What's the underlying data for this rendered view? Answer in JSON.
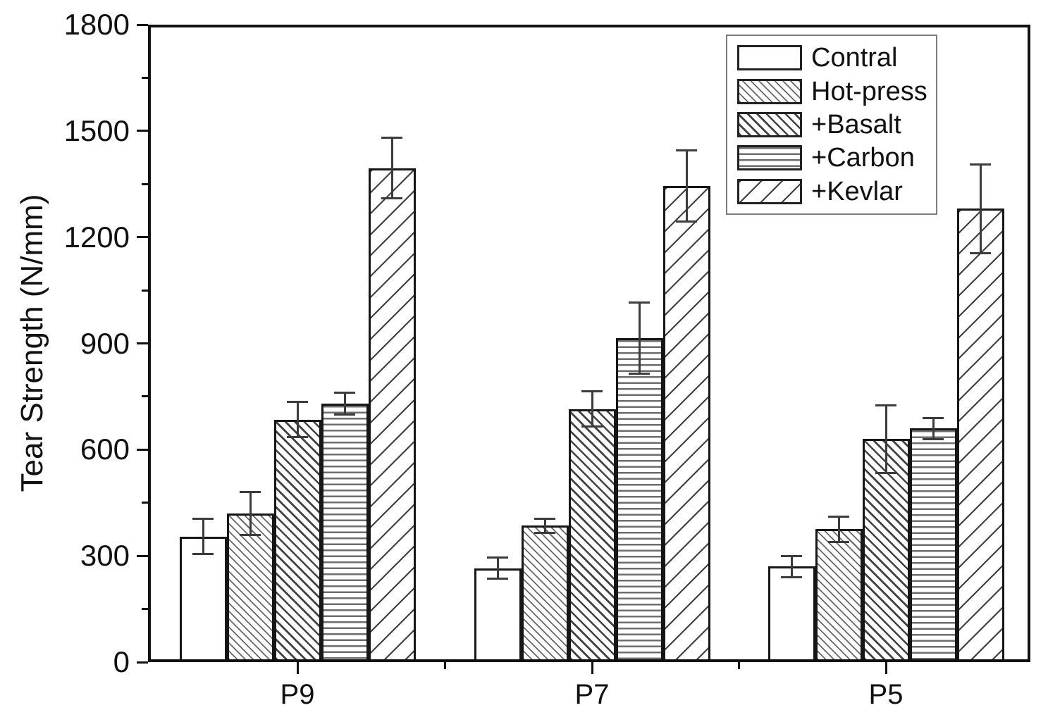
{
  "figure": {
    "ylabel": "Tear Strength (N/mm)"
  },
  "chart_data": {
    "type": "bar",
    "categories": [
      "P9",
      "P7",
      "P5"
    ],
    "series": [
      {
        "name": "Contral",
        "pattern": "solid-white",
        "values": [
          355,
          265,
          270
        ],
        "errors": [
          50,
          30,
          30
        ]
      },
      {
        "name": "Hot-press",
        "pattern": "hatch-backslash-fine",
        "values": [
          420,
          385,
          375
        ],
        "errors": [
          60,
          20,
          35
        ]
      },
      {
        "name": "+Basalt",
        "pattern": "hatch-backslash-bold",
        "values": [
          685,
          715,
          630
        ],
        "errors": [
          50,
          50,
          95
        ]
      },
      {
        "name": "+Carbon",
        "pattern": "lines-horizontal",
        "values": [
          730,
          915,
          660
        ],
        "errors": [
          30,
          100,
          30
        ]
      },
      {
        "name": "+Kevlar",
        "pattern": "hatch-slash-wide",
        "values": [
          1395,
          1345,
          1280
        ],
        "errors": [
          85,
          100,
          125
        ]
      }
    ],
    "title": "",
    "xlabel": "",
    "ylabel": "Tear Strength (N/mm)",
    "ylim": [
      0,
      1800
    ],
    "y_major_step": 300,
    "y_minor_step": 150,
    "bar_edge_color": "#161616",
    "error_bar_color": "#3c3c3c",
    "grid": false,
    "legend_position": "top-right"
  }
}
